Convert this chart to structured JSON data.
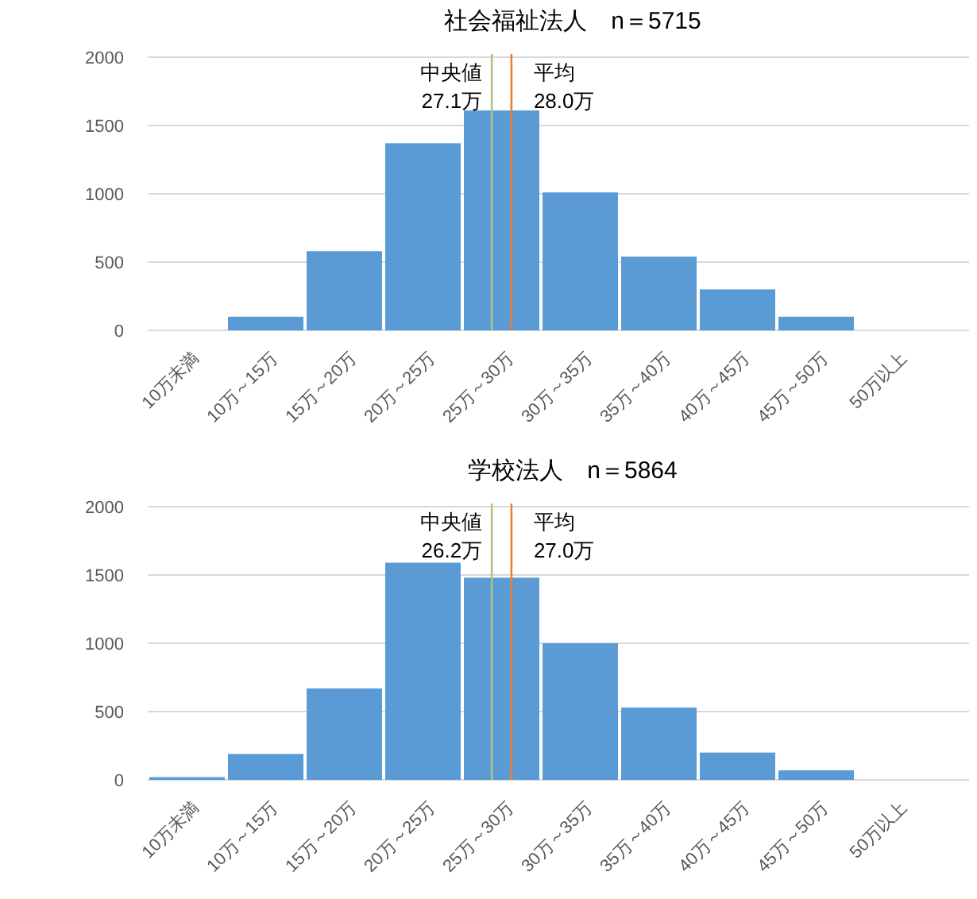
{
  "chart_data": [
    {
      "type": "bar",
      "title": "社会福祉法人　n＝5715",
      "categories": [
        "10万未満",
        "10万～15万",
        "15万～20万",
        "20万～25万",
        "25万～30万",
        "30万～35万",
        "35万～40万",
        "40万～45万",
        "45万～50万",
        "50万以上"
      ],
      "values": [
        0,
        100,
        580,
        1370,
        1610,
        1010,
        540,
        300,
        100,
        0
      ],
      "color": "#5b9bd5",
      "ylim": [
        0,
        2000
      ],
      "yticks": [
        0,
        500,
        1000,
        1500,
        2000
      ],
      "grid": "y",
      "ref_lines": [
        {
          "axis": "x",
          "value": "25万～30万",
          "label": "中央値\n27.1万",
          "color": "#a9c47f"
        },
        {
          "axis": "x",
          "value": "25万～30万",
          "label": "平均\n28.0万",
          "color": "#ed7d31"
        }
      ]
    },
    {
      "type": "bar",
      "title": "学校法人　n＝5864",
      "categories": [
        "10万未満",
        "10万～15万",
        "15万～20万",
        "20万～25万",
        "25万～30万",
        "30万～35万",
        "35万～40万",
        "40万～45万",
        "45万～50万",
        "50万以上"
      ],
      "values": [
        20,
        190,
        670,
        1590,
        1480,
        1000,
        530,
        200,
        70,
        0
      ],
      "color": "#5b9bd5",
      "ylim": [
        0,
        2000
      ],
      "yticks": [
        0,
        500,
        1000,
        1500,
        2000
      ],
      "grid": "y",
      "ref_lines": [
        {
          "axis": "x",
          "value": "25万～30万",
          "label": "中央値\n26.2万",
          "color": "#a9c47f"
        },
        {
          "axis": "x",
          "value": "25万～30万",
          "label": "平均\n27.0万",
          "color": "#ed7d31"
        }
      ]
    }
  ]
}
